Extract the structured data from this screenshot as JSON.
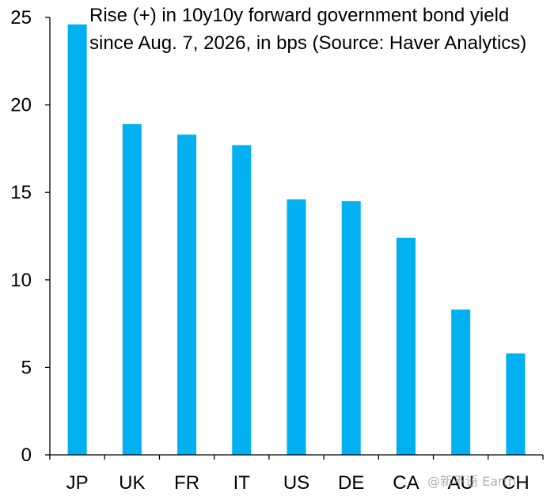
{
  "chart_data": {
    "type": "bar",
    "title_lines": [
      "Rise (+) in 10y10y forward government bond yield",
      "since Aug. 7, 2026, in bps (Source: Haver Analytics)"
    ],
    "categories": [
      "JP",
      "UK",
      "FR",
      "IT",
      "US",
      "DE",
      "CA",
      "AU",
      "CH"
    ],
    "values": [
      24.6,
      18.9,
      18.3,
      17.7,
      14.6,
      14.5,
      12.4,
      8.3,
      5.8
    ],
    "ylim": [
      0,
      25
    ],
    "yticks": [
      0,
      5,
      10,
      15,
      20,
      25
    ],
    "bar_color": "#00b0f0",
    "axis_color": "#000000",
    "grid": false,
    "legend": "none"
  },
  "watermark": {
    "text": "@新不语 Earth"
  }
}
